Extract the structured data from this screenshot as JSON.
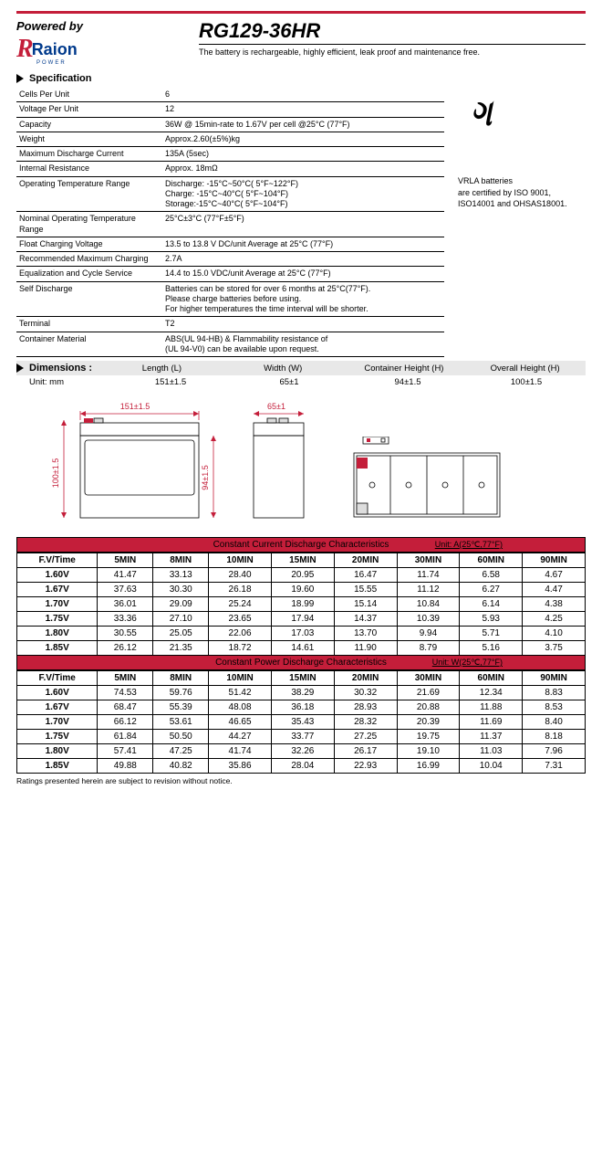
{
  "header": {
    "powered_by": "Powered by",
    "logo_brand": "Raion",
    "logo_sub": "POWER",
    "model": "RG129-36HR",
    "description": "The battery is rechargeable, highly efficient, leak proof and maintenance free."
  },
  "sections": {
    "spec": "Specification",
    "dim": "Dimensions :"
  },
  "spec_rows": [
    [
      "Cells Per Unit",
      "6"
    ],
    [
      "Voltage Per Unit",
      "12"
    ],
    [
      "Capacity",
      "36W @ 15min-rate to 1.67V per cell @25°C (77°F)"
    ],
    [
      "Weight",
      "Approx.2.60(±5%)kg"
    ],
    [
      "Maximum Discharge Current",
      "135A (5sec)"
    ],
    [
      "Internal Resistance",
      "Approx. 18mΩ"
    ],
    [
      "Operating Temperature Range",
      "Discharge: -15°C~50°C( 5°F~122°F)\nCharge: -15°C~40°C( 5°F~104°F)\nStorage:-15°C~40°C( 5°F~104°F)"
    ],
    [
      "Nominal Operating Temperature Range",
      "25°C±3°C (77°F±5°F)"
    ],
    [
      "Float Charging Voltage",
      "13.5 to 13.8 V DC/unit Average at 25°C (77°F)"
    ],
    [
      "Recommended Maximum Charging",
      "2.7A"
    ],
    [
      "Equalization and Cycle Service",
      "14.4 to 15.0 VDC/unit Average at 25°C (77°F)"
    ],
    [
      "Self Discharge",
      "Batteries can be stored for over 6 months at 25°C(77°F).\nPlease charge batteries before using.\nFor higher temperatures the time interval will be shorter."
    ],
    [
      "Terminal",
      "T2"
    ],
    [
      "Container Material",
      "ABS(UL 94-HB) & Flammability resistance of\n(UL 94-V0) can be available upon request."
    ]
  ],
  "cert": {
    "line1": "VRLA batteries",
    "line2": "are certified by ISO 9001,",
    "line3": "ISO14001 and OHSAS18001."
  },
  "dim": {
    "unit": "Unit: mm",
    "cols": [
      "Length (L)",
      "Width (W)",
      "Container Height (H)",
      "Overall Height (H)"
    ],
    "vals": [
      "151±1.5",
      "65±1",
      "94±1.5",
      "100±1.5"
    ],
    "lbl_l": "151±1.5",
    "lbl_w": "65±1",
    "lbl_h": "94±1.5",
    "lbl_oh": "100±1.5"
  },
  "tables": {
    "t1_title": "Constant Current Discharge Characteristics",
    "t1_unit": "Unit: A(25℃,77°F)",
    "t2_title": "Constant Power Discharge Characteristics",
    "t2_unit": "Unit: W(25℃,77°F)",
    "heads": [
      "F.V/Time",
      "5MIN",
      "8MIN",
      "10MIN",
      "15MIN",
      "20MIN",
      "30MIN",
      "60MIN",
      "90MIN"
    ],
    "rows1": [
      [
        "1.60V",
        "41.47",
        "33.13",
        "28.40",
        "20.95",
        "16.47",
        "11.74",
        "6.58",
        "4.67"
      ],
      [
        "1.67V",
        "37.63",
        "30.30",
        "26.18",
        "19.60",
        "15.55",
        "11.12",
        "6.27",
        "4.47"
      ],
      [
        "1.70V",
        "36.01",
        "29.09",
        "25.24",
        "18.99",
        "15.14",
        "10.84",
        "6.14",
        "4.38"
      ],
      [
        "1.75V",
        "33.36",
        "27.10",
        "23.65",
        "17.94",
        "14.37",
        "10.39",
        "5.93",
        "4.25"
      ],
      [
        "1.80V",
        "30.55",
        "25.05",
        "22.06",
        "17.03",
        "13.70",
        "9.94",
        "5.71",
        "4.10"
      ],
      [
        "1.85V",
        "26.12",
        "21.35",
        "18.72",
        "14.61",
        "11.90",
        "8.79",
        "5.16",
        "3.75"
      ]
    ],
    "rows2": [
      [
        "1.60V",
        "74.53",
        "59.76",
        "51.42",
        "38.29",
        "30.32",
        "21.69",
        "12.34",
        "8.83"
      ],
      [
        "1.67V",
        "68.47",
        "55.39",
        "48.08",
        "36.18",
        "28.93",
        "20.88",
        "11.88",
        "8.53"
      ],
      [
        "1.70V",
        "66.12",
        "53.61",
        "46.65",
        "35.43",
        "28.32",
        "20.39",
        "11.69",
        "8.40"
      ],
      [
        "1.75V",
        "61.84",
        "50.50",
        "44.27",
        "33.77",
        "27.25",
        "19.75",
        "11.37",
        "8.18"
      ],
      [
        "1.80V",
        "57.41",
        "47.25",
        "41.74",
        "32.26",
        "26.17",
        "19.10",
        "11.03",
        "7.96"
      ],
      [
        "1.85V",
        "49.88",
        "40.82",
        "35.86",
        "28.04",
        "22.93",
        "16.99",
        "10.04",
        "7.31"
      ]
    ]
  },
  "footer": "Ratings presented herein are subject to revision without notice.",
  "colors": {
    "red": "#c41e3a",
    "blue": "#003a8c",
    "grey": "#e8e8e8"
  }
}
